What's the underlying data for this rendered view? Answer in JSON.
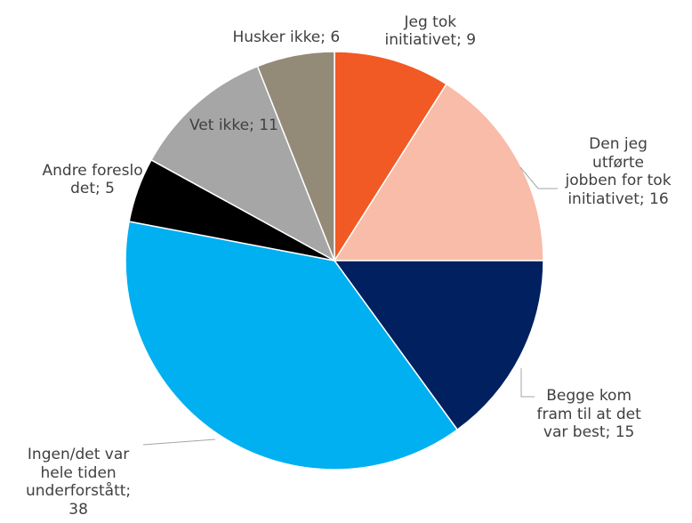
{
  "chart_data": {
    "type": "pie",
    "title": "",
    "slices": [
      {
        "name": "Jeg tok initiativet",
        "value": 9,
        "label": "Jeg tok\ninitiativet; 9",
        "color": "#F15A24"
      },
      {
        "name": "Den jeg utførte jobben for tok initiativet",
        "value": 16,
        "label": "Den jeg\nutførte\njobben for tok\ninitiativet; 16",
        "color": "#F8BCA8"
      },
      {
        "name": "Begge kom fram til at det var best",
        "value": 15,
        "label": "Begge kom\nfram til at det\nvar best; 15",
        "color": "#002060"
      },
      {
        "name": "Ingen/det var hele tiden underforstått",
        "value": 38,
        "label": "Ingen/det var\nhele tiden\nunderforstått;\n38",
        "color": "#00B0F0"
      },
      {
        "name": "Andre foreslo det",
        "value": 5,
        "label": "Andre foreslo\ndet; 5",
        "color": "#000000"
      },
      {
        "name": "Vet ikke",
        "value": 11,
        "label": "Vet ikke; 11",
        "color": "#A6A6A6"
      },
      {
        "name": "Husker ikke",
        "value": 6,
        "label": "Husker ikke; 6",
        "color": "#948A78"
      }
    ],
    "legend": "none",
    "data_labels": "category; value"
  }
}
